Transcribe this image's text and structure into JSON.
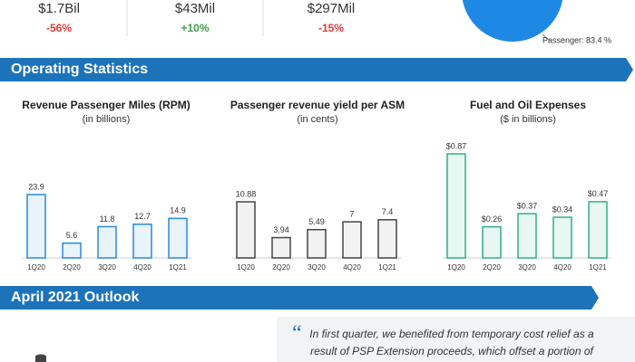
{
  "kpis": [
    {
      "value": "$1.7Bil",
      "change": "-56%"
    },
    {
      "value": "$43Mil",
      "change": "+10%"
    },
    {
      "value": "$297Mil",
      "change": "-15%"
    }
  ],
  "sections": [
    "Operating Statistics",
    "April 2021 Outlook"
  ],
  "quote": "In first quarter, we benefited from temporary cost relief as a result of PSP Extension proceeds, which offset a portion of",
  "chart_data": [
    {
      "type": "pie",
      "categories": [
        "Passenger"
      ],
      "values": [
        83.4
      ],
      "value_labels": [
        "Passenger: 83.4 %"
      ],
      "color": "#1e88e5"
    },
    {
      "type": "bar",
      "title": "Revenue Passenger Miles (RPM)",
      "subtitle": "(in billions)",
      "categories": [
        "1Q20",
        "2Q20",
        "3Q20",
        "4Q20",
        "1Q21"
      ],
      "values": [
        23.9,
        5.6,
        11.8,
        12.7,
        14.9
      ],
      "color": "#2a8ad8",
      "fill": "#e8f3fc"
    },
    {
      "type": "bar",
      "title": "Passenger revenue yield per ASM",
      "subtitle": "(in cents)",
      "categories": [
        "1Q20",
        "2Q20",
        "3Q20",
        "4Q20",
        "1Q21"
      ],
      "values": [
        10.88,
        3.94,
        5.49,
        7,
        7.4
      ],
      "color": "#444444",
      "fill": "#f2f2f2"
    },
    {
      "type": "bar",
      "title": "Fuel and Oil Expenses",
      "subtitle": "($ in billions)",
      "categories": [
        "1Q20",
        "2Q20",
        "3Q20",
        "4Q20",
        "1Q21"
      ],
      "values": [
        0.87,
        0.26,
        0.37,
        0.34,
        0.47
      ],
      "value_labels": [
        "$0.87",
        "$0.26",
        "$0.37",
        "$0.34",
        "$0.47"
      ],
      "color": "#2bb08a",
      "fill": "#e9f7f2"
    }
  ]
}
